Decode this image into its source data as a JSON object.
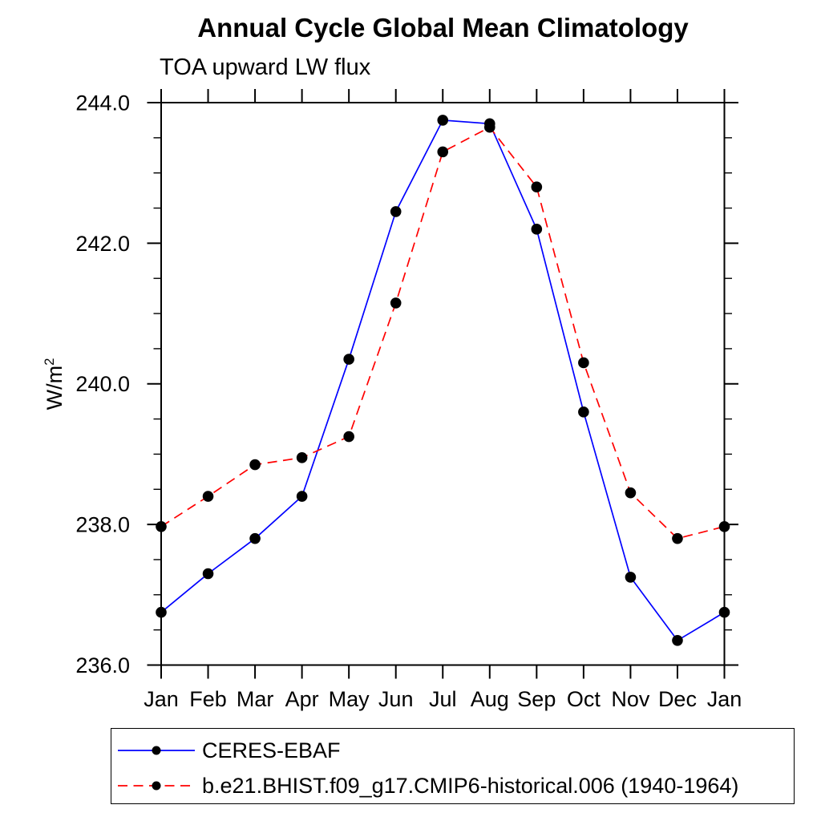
{
  "chart_data": {
    "type": "line",
    "title": "Annual Cycle Global Mean Climatology",
    "subtitle": "TOA upward LW flux",
    "ylabel": {
      "base": "W/m",
      "sup": "2"
    },
    "categories": [
      "Jan",
      "Feb",
      "Mar",
      "Apr",
      "May",
      "Jun",
      "Jul",
      "Aug",
      "Sep",
      "Oct",
      "Nov",
      "Dec",
      "Jan"
    ],
    "ylim": [
      236.0,
      244.0
    ],
    "ytick_major_interval": 2.0,
    "ytick_minor_interval": 0.5,
    "ytick_labels": [
      "244.0",
      "242.0",
      "240.0",
      "238.0",
      "236.0"
    ],
    "grid": false,
    "legend_position": "bottom-left-box",
    "axis_color": "#000000",
    "marker_color": "#000000",
    "series": [
      {
        "name": "CERES-EBAF",
        "color": "#0000ff",
        "line_style": "solid",
        "marker": "filled-circle",
        "values": [
          236.75,
          237.3,
          237.8,
          238.4,
          240.35,
          242.45,
          243.75,
          243.7,
          242.2,
          239.6,
          237.25,
          236.35,
          236.75
        ]
      },
      {
        "name": "b.e21.BHIST.f09_g17.CMIP6-historical.006 (1940-1964)",
        "color": "#ff0000",
        "line_style": "dashed",
        "marker": "filled-circle",
        "values": [
          237.97,
          238.4,
          238.85,
          238.95,
          239.25,
          241.15,
          243.3,
          243.65,
          242.8,
          240.3,
          238.45,
          237.8,
          237.97
        ]
      }
    ]
  }
}
